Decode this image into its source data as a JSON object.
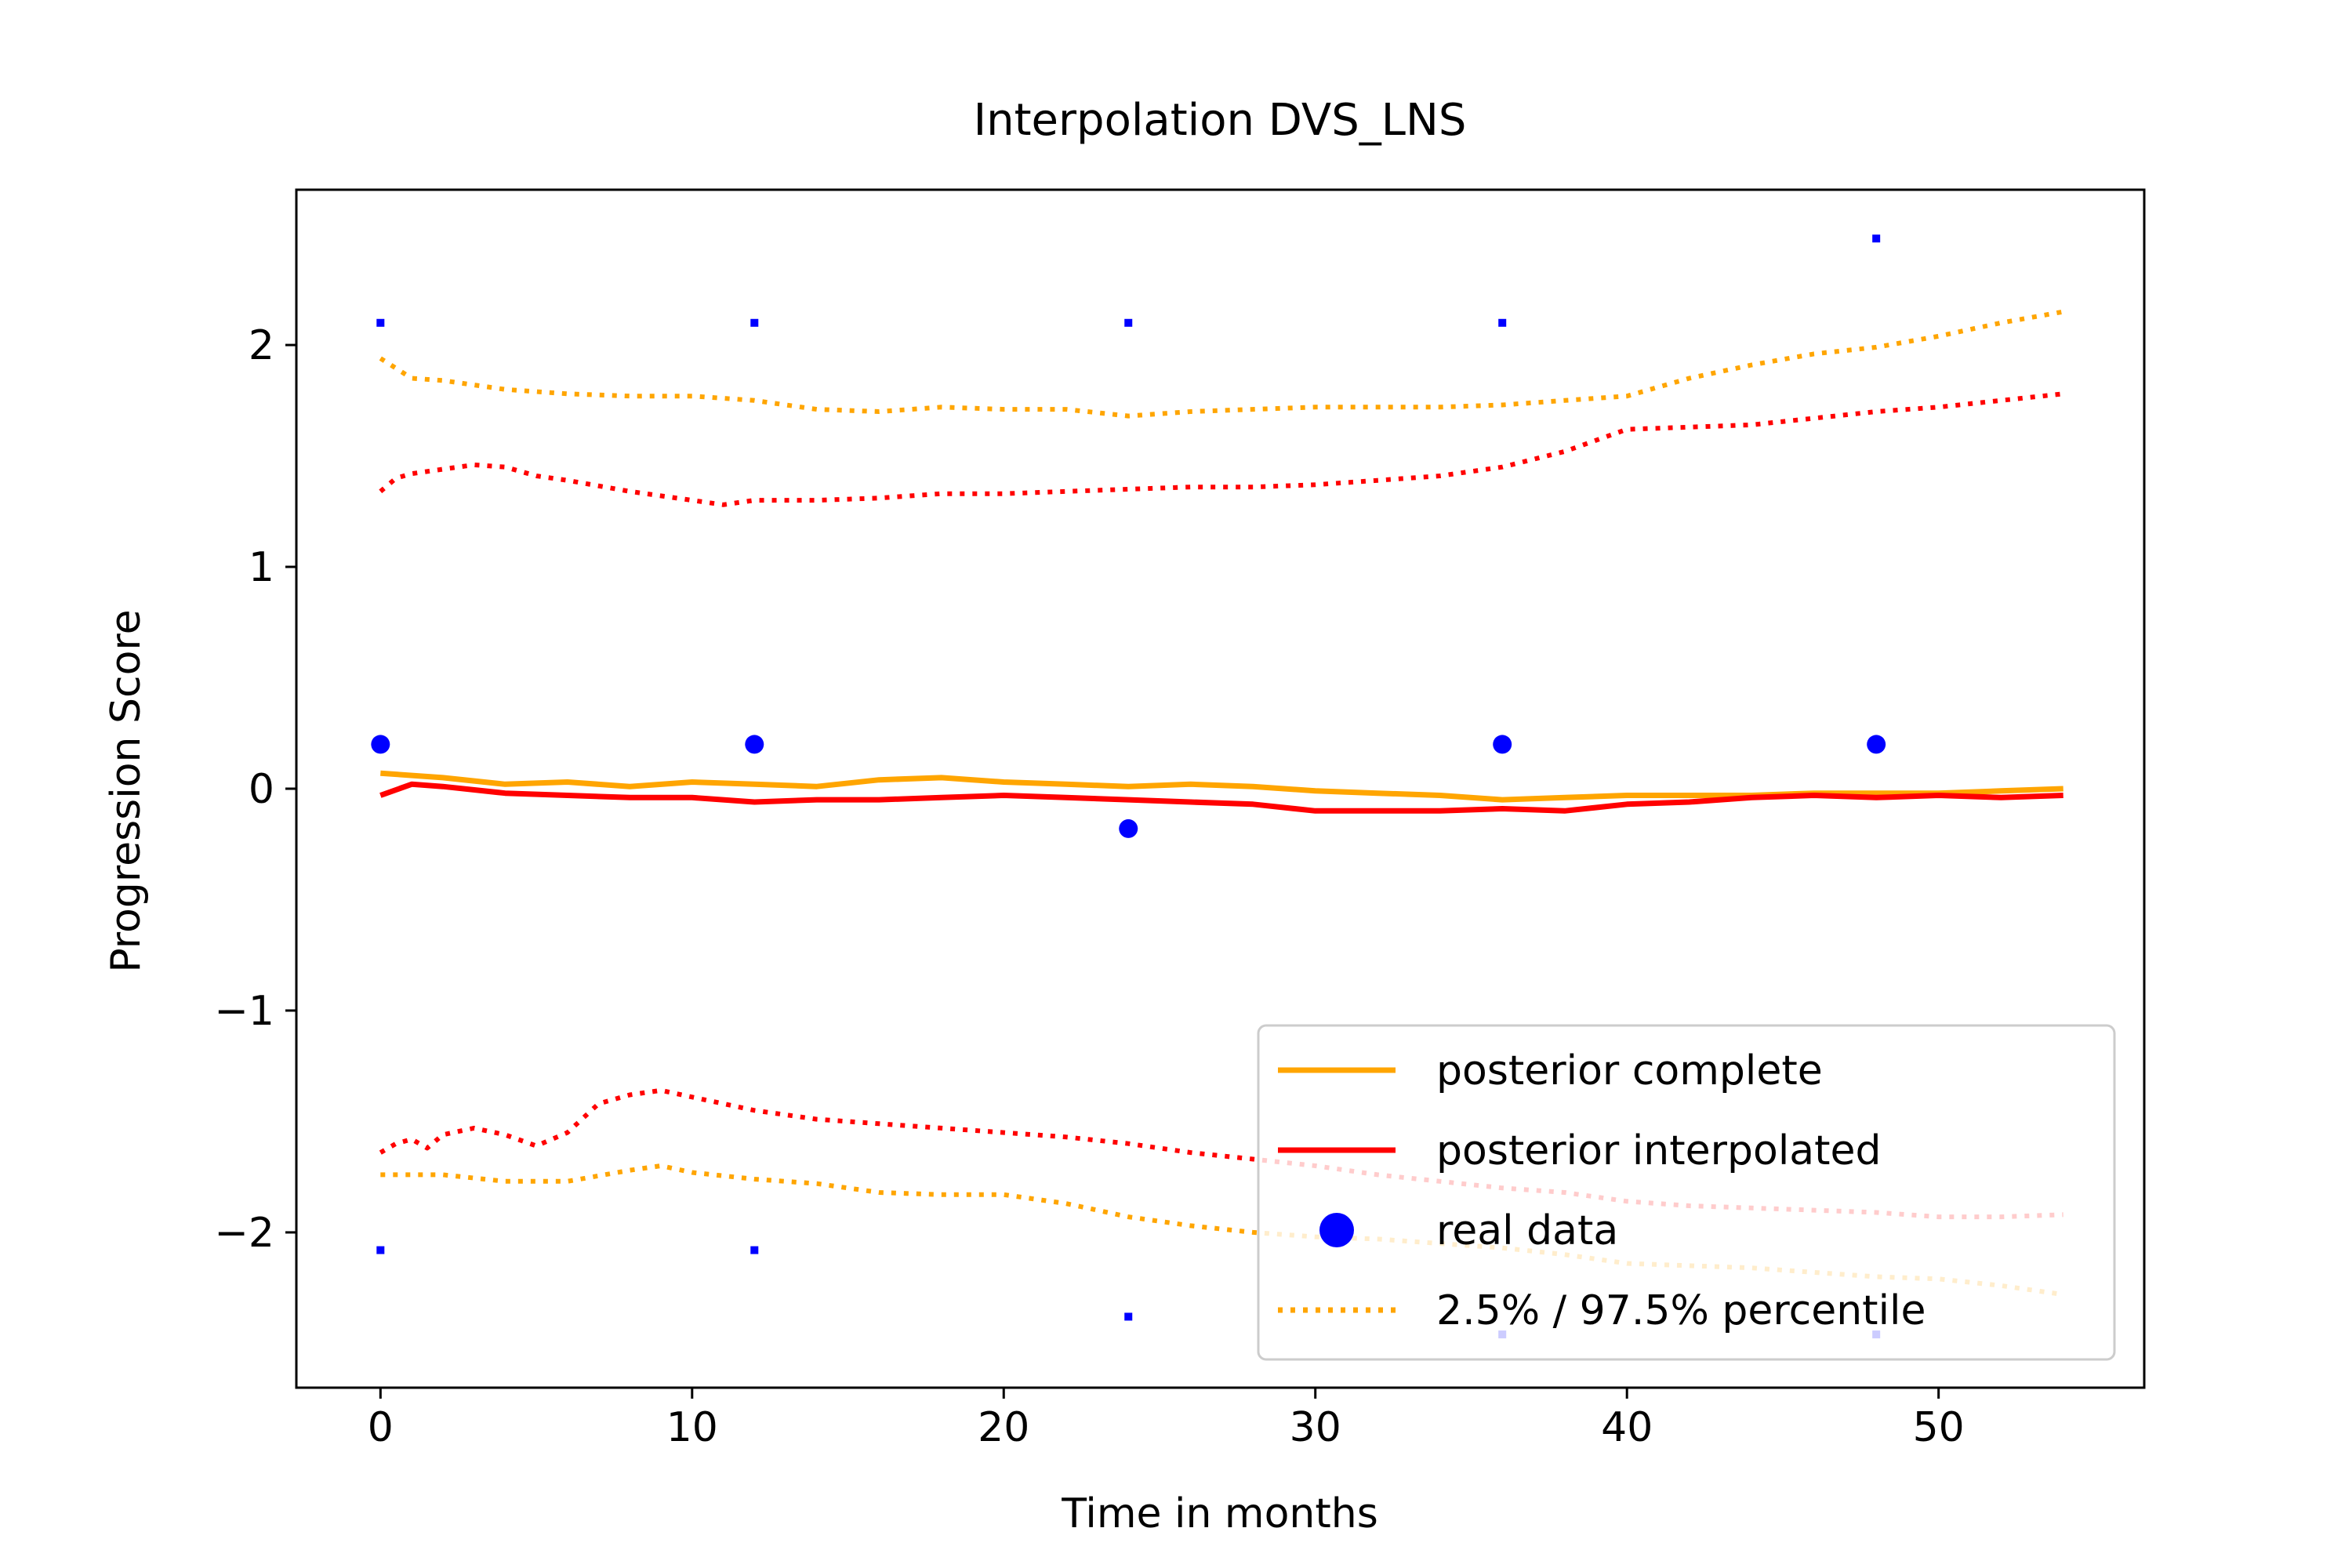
{
  "chart_data": {
    "type": "line",
    "title": "Interpolation DVS_LNS",
    "xlabel": "Time in months",
    "ylabel": "Progression Score",
    "xlim": [
      -2.7,
      56.6
    ],
    "ylim": [
      -2.7,
      2.7
    ],
    "x_ticks": [
      0,
      10,
      20,
      30,
      40,
      50
    ],
    "x_tick_labels": [
      "0",
      "10",
      "20",
      "30",
      "40",
      "50"
    ],
    "y_ticks": [
      -2,
      -1,
      0,
      1,
      2
    ],
    "y_tick_labels": [
      "−2",
      "−1",
      "0",
      "1",
      "2"
    ],
    "grid": false,
    "legend_position": "lower-right",
    "series": [
      {
        "name": "posterior complete",
        "role": "mean",
        "color": "#ffa500",
        "style": "solid",
        "x": [
          0,
          2,
          4,
          6,
          8,
          10,
          12,
          14,
          16,
          18,
          20,
          22,
          24,
          26,
          28,
          30,
          32,
          34,
          36,
          38,
          40,
          42,
          44,
          46,
          48,
          50,
          52,
          54
        ],
        "y": [
          0.07,
          0.05,
          0.02,
          0.03,
          0.01,
          0.03,
          0.02,
          0.01,
          0.04,
          0.05,
          0.03,
          0.02,
          0.01,
          0.02,
          0.01,
          -0.01,
          -0.02,
          -0.03,
          -0.05,
          -0.04,
          -0.03,
          -0.03,
          -0.03,
          -0.02,
          -0.02,
          -0.02,
          -0.01,
          0.0
        ]
      },
      {
        "name": "posterior interpolated",
        "role": "mean",
        "color": "#ff0000",
        "style": "solid",
        "x": [
          0,
          1,
          2,
          4,
          6,
          8,
          10,
          12,
          14,
          16,
          18,
          20,
          22,
          24,
          26,
          28,
          30,
          32,
          34,
          36,
          38,
          40,
          42,
          44,
          46,
          48,
          50,
          52,
          54
        ],
        "y": [
          -0.03,
          0.02,
          0.01,
          -0.02,
          -0.03,
          -0.04,
          -0.04,
          -0.06,
          -0.05,
          -0.05,
          -0.04,
          -0.03,
          -0.04,
          -0.05,
          -0.06,
          -0.07,
          -0.1,
          -0.1,
          -0.1,
          -0.09,
          -0.1,
          -0.07,
          -0.06,
          -0.04,
          -0.03,
          -0.04,
          -0.03,
          -0.04,
          -0.03
        ]
      },
      {
        "name": "2.5% / 97.5% percentile",
        "role": "upper",
        "color": "#ffa500",
        "style": "dotted",
        "x": [
          0,
          1,
          2,
          4,
          6,
          8,
          10,
          12,
          14,
          16,
          18,
          20,
          22,
          24,
          26,
          28,
          30,
          32,
          34,
          36,
          38,
          40,
          42,
          44,
          46,
          48,
          50,
          52,
          54
        ],
        "y": [
          1.94,
          1.85,
          1.84,
          1.8,
          1.78,
          1.77,
          1.77,
          1.75,
          1.71,
          1.7,
          1.72,
          1.71,
          1.71,
          1.68,
          1.7,
          1.71,
          1.72,
          1.72,
          1.72,
          1.73,
          1.75,
          1.77,
          1.85,
          1.91,
          1.96,
          1.99,
          2.04,
          2.1,
          2.15
        ]
      },
      {
        "role": "lower",
        "color": "#ffa500",
        "style": "dotted",
        "x": [
          0,
          2,
          4,
          6,
          8,
          9,
          10,
          12,
          14,
          16,
          18,
          20,
          22,
          24,
          26,
          28,
          30,
          32,
          34,
          36,
          38,
          40,
          42,
          44,
          46,
          48,
          50,
          52,
          54
        ],
        "y": [
          -1.74,
          -1.74,
          -1.77,
          -1.77,
          -1.72,
          -1.7,
          -1.73,
          -1.76,
          -1.78,
          -1.82,
          -1.83,
          -1.83,
          -1.87,
          -1.93,
          -1.97,
          -2.0,
          -2.02,
          -2.03,
          -2.05,
          -2.07,
          -2.1,
          -2.14,
          -2.15,
          -2.16,
          -2.18,
          -2.2,
          -2.21,
          -2.24,
          -2.28
        ]
      },
      {
        "role": "upper",
        "color": "#ff0000",
        "style": "dotted",
        "x": [
          0,
          0.5,
          1,
          2,
          3,
          4,
          5,
          6,
          8,
          10,
          11,
          12,
          14,
          16,
          18,
          20,
          22,
          24,
          26,
          28,
          30,
          32,
          34,
          36,
          38,
          40,
          42,
          44,
          46,
          48,
          50,
          52,
          54
        ],
        "y": [
          1.34,
          1.4,
          1.42,
          1.44,
          1.46,
          1.45,
          1.41,
          1.39,
          1.34,
          1.3,
          1.28,
          1.3,
          1.3,
          1.31,
          1.33,
          1.33,
          1.34,
          1.35,
          1.36,
          1.36,
          1.37,
          1.39,
          1.41,
          1.45,
          1.52,
          1.62,
          1.63,
          1.64,
          1.67,
          1.7,
          1.72,
          1.75,
          1.78
        ]
      },
      {
        "role": "lower",
        "color": "#ff0000",
        "style": "dotted",
        "x": [
          0,
          0.5,
          1,
          1.5,
          2,
          3,
          4,
          5,
          6,
          7,
          8,
          9,
          10,
          12,
          14,
          16,
          18,
          20,
          22,
          24,
          26,
          28,
          30,
          32,
          34,
          36,
          38,
          40,
          42,
          44,
          46,
          48,
          50,
          52,
          54
        ],
        "y": [
          -1.64,
          -1.6,
          -1.58,
          -1.62,
          -1.56,
          -1.53,
          -1.56,
          -1.61,
          -1.55,
          -1.42,
          -1.38,
          -1.36,
          -1.39,
          -1.45,
          -1.49,
          -1.51,
          -1.53,
          -1.55,
          -1.57,
          -1.6,
          -1.64,
          -1.67,
          -1.7,
          -1.74,
          -1.77,
          -1.8,
          -1.82,
          -1.86,
          -1.88,
          -1.89,
          -1.9,
          -1.91,
          -1.93,
          -1.93,
          -1.92
        ]
      }
    ],
    "real_data": {
      "name": "real data",
      "color": "#0000ff",
      "points": [
        {
          "x": 0,
          "y": 0.2
        },
        {
          "x": 12,
          "y": 0.2
        },
        {
          "x": 24,
          "y": -0.18
        },
        {
          "x": 36,
          "y": 0.2
        },
        {
          "x": 48,
          "y": 0.2
        }
      ],
      "interval_marks": [
        {
          "x": 0,
          "y": 2.1
        },
        {
          "x": 12,
          "y": 2.1
        },
        {
          "x": 24,
          "y": 2.1
        },
        {
          "x": 36,
          "y": 2.1
        },
        {
          "x": 48,
          "y": 2.48
        },
        {
          "x": 0,
          "y": -2.08
        },
        {
          "x": 12,
          "y": -2.08
        },
        {
          "x": 24,
          "y": -2.38
        },
        {
          "x": 36,
          "y": -2.46
        },
        {
          "x": 48,
          "y": -2.46
        }
      ]
    },
    "legend": [
      {
        "label": "posterior complete",
        "color": "#ffa500",
        "kind": "line"
      },
      {
        "label": "posterior interpolated",
        "color": "#ff0000",
        "kind": "line"
      },
      {
        "label": "real data",
        "color": "#0000ff",
        "kind": "marker"
      },
      {
        "label": "2.5% / 97.5% percentile",
        "color": "#ffa500",
        "kind": "dotted"
      }
    ]
  }
}
